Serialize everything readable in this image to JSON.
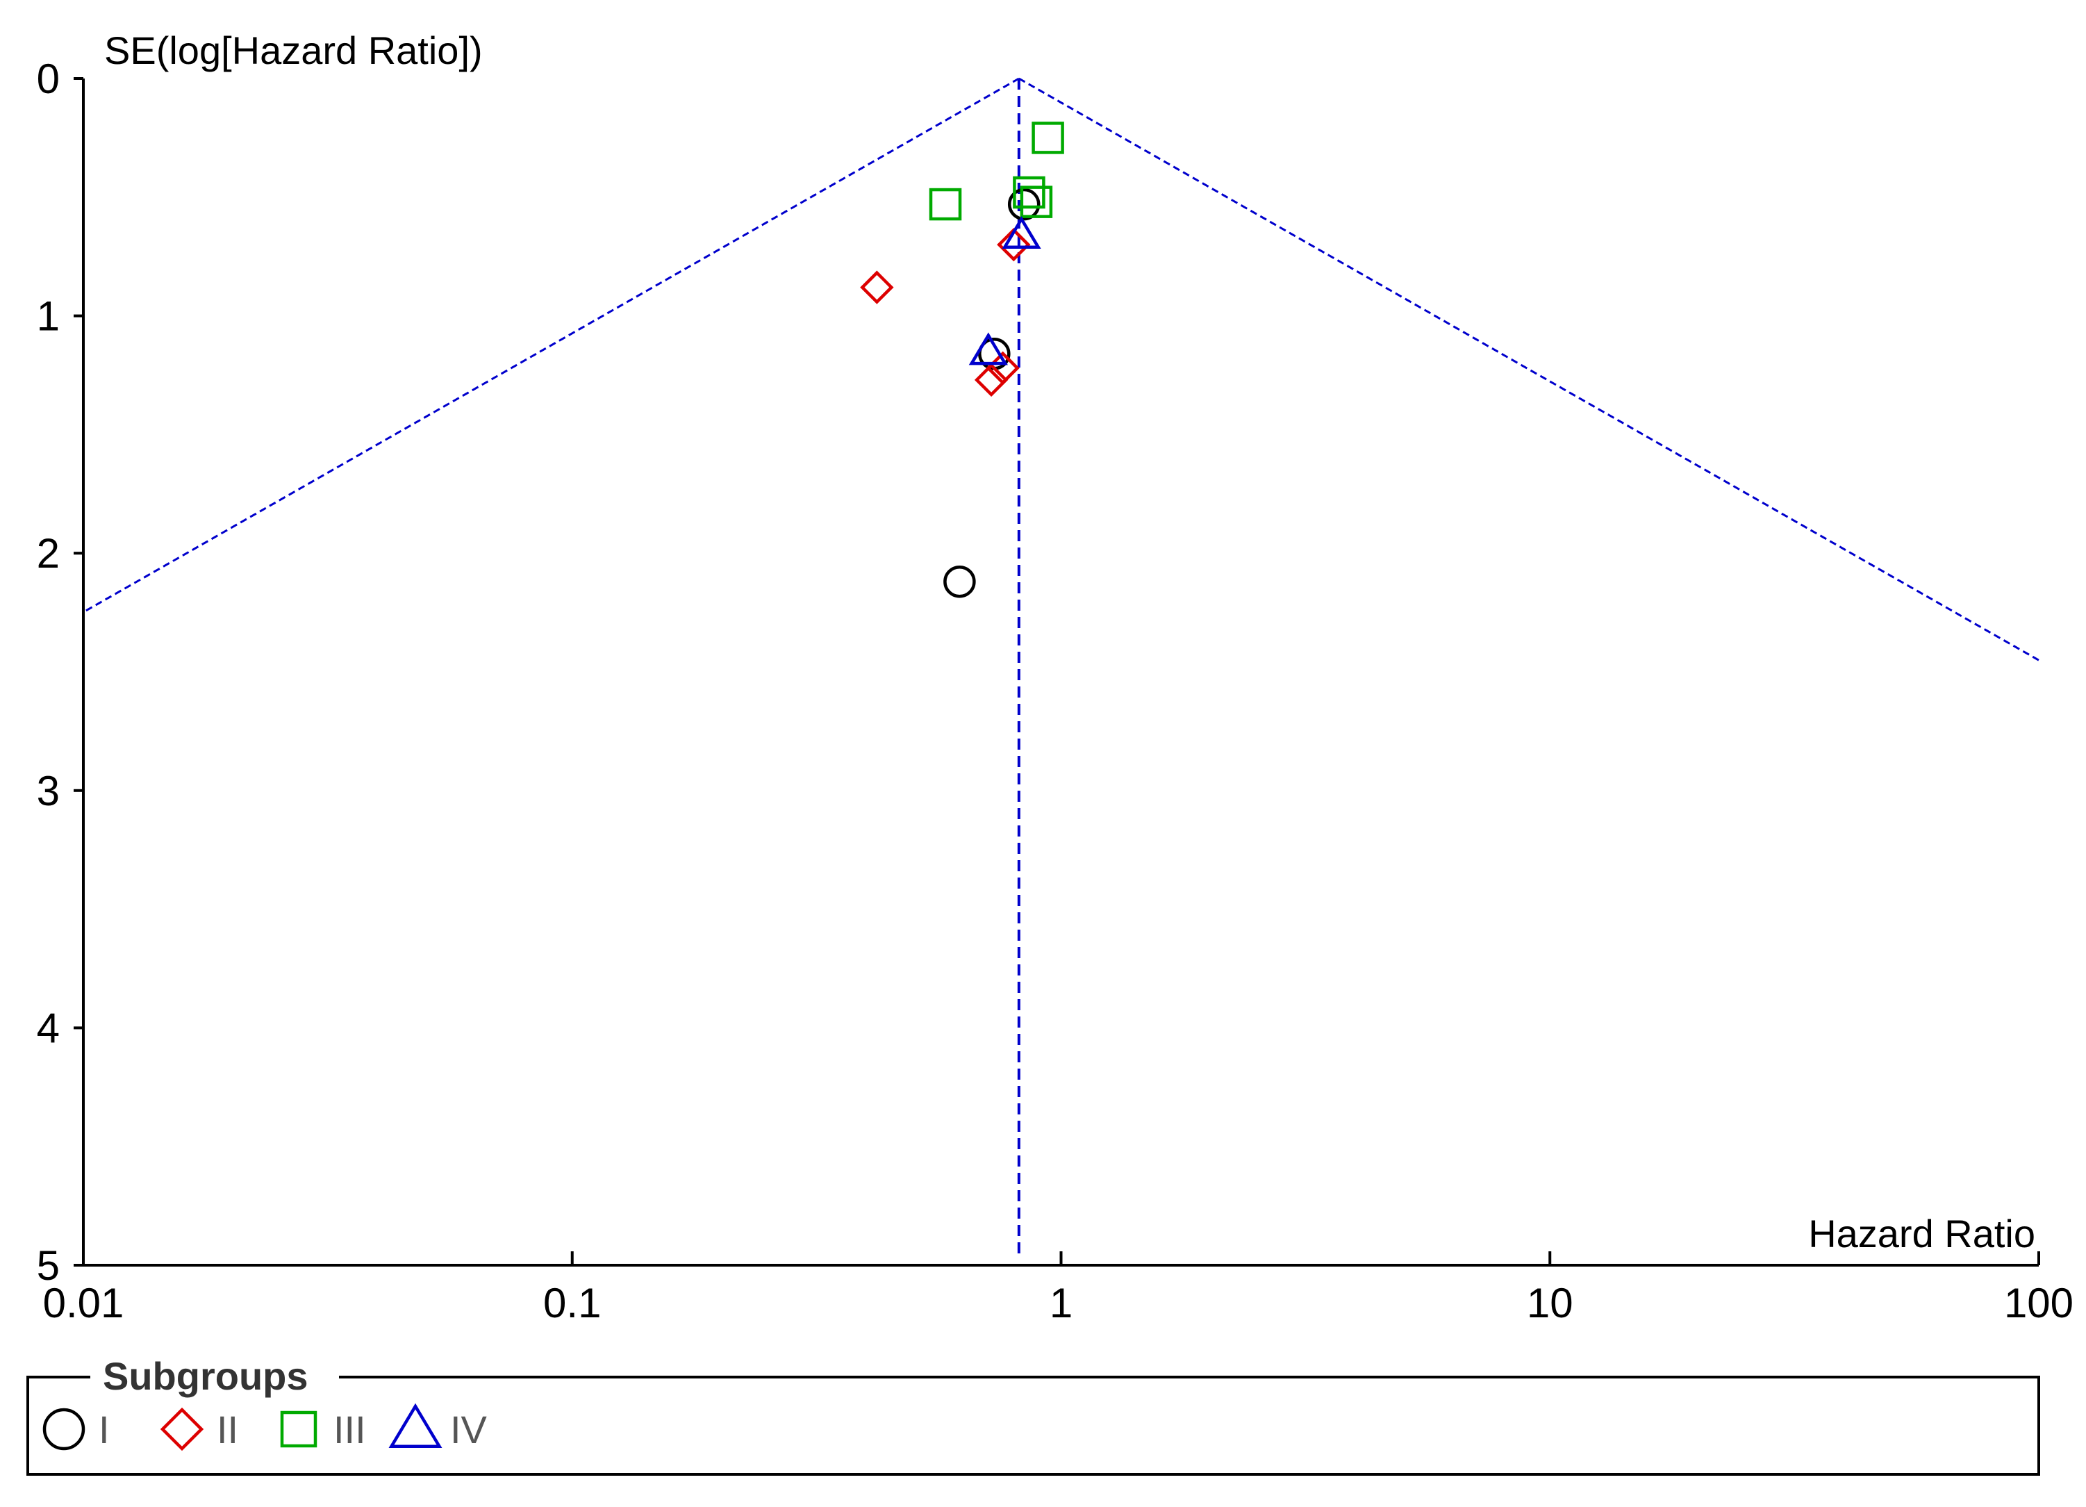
{
  "chart_data": {
    "type": "scatter",
    "title": "",
    "xlabel": "Hazard Ratio",
    "ylabel": "SE(log[Hazard Ratio])",
    "x_scale": "log",
    "xlim": [
      0.01,
      100
    ],
    "ylim": [
      0,
      5
    ],
    "y_inverted": true,
    "x_ticks": [
      0.01,
      0.1,
      1,
      10,
      100
    ],
    "x_tick_labels": [
      "0.01",
      "0.1",
      "1",
      "10",
      "100"
    ],
    "y_ticks": [
      0,
      1,
      2,
      3,
      4,
      5
    ],
    "y_tick_labels": [
      "0",
      "1",
      "2",
      "3",
      "4",
      "5"
    ],
    "pooled_estimate": 0.82,
    "funnel_color": "#0000cc",
    "legend": {
      "title": "Subgroups",
      "placement": "bottom"
    },
    "series": [
      {
        "name": "I",
        "marker": "circle",
        "color": "#000000",
        "points": [
          {
            "x": 0.84,
            "y": 0.53
          },
          {
            "x": 0.73,
            "y": 1.16
          },
          {
            "x": 0.62,
            "y": 2.12
          }
        ]
      },
      {
        "name": "II",
        "marker": "diamond",
        "color": "#dd0000",
        "points": [
          {
            "x": 0.8,
            "y": 0.7
          },
          {
            "x": 0.42,
            "y": 0.88
          },
          {
            "x": 0.76,
            "y": 1.22
          },
          {
            "x": 0.72,
            "y": 1.27
          }
        ]
      },
      {
        "name": "III",
        "marker": "square",
        "color": "#00aa00",
        "points": [
          {
            "x": 0.94,
            "y": 0.25
          },
          {
            "x": 0.86,
            "y": 0.48
          },
          {
            "x": 0.89,
            "y": 0.52
          },
          {
            "x": 0.58,
            "y": 0.53
          }
        ]
      },
      {
        "name": "IV",
        "marker": "triangle",
        "color": "#0000cc",
        "points": [
          {
            "x": 0.83,
            "y": 0.66
          },
          {
            "x": 0.71,
            "y": 1.15
          }
        ]
      }
    ]
  }
}
